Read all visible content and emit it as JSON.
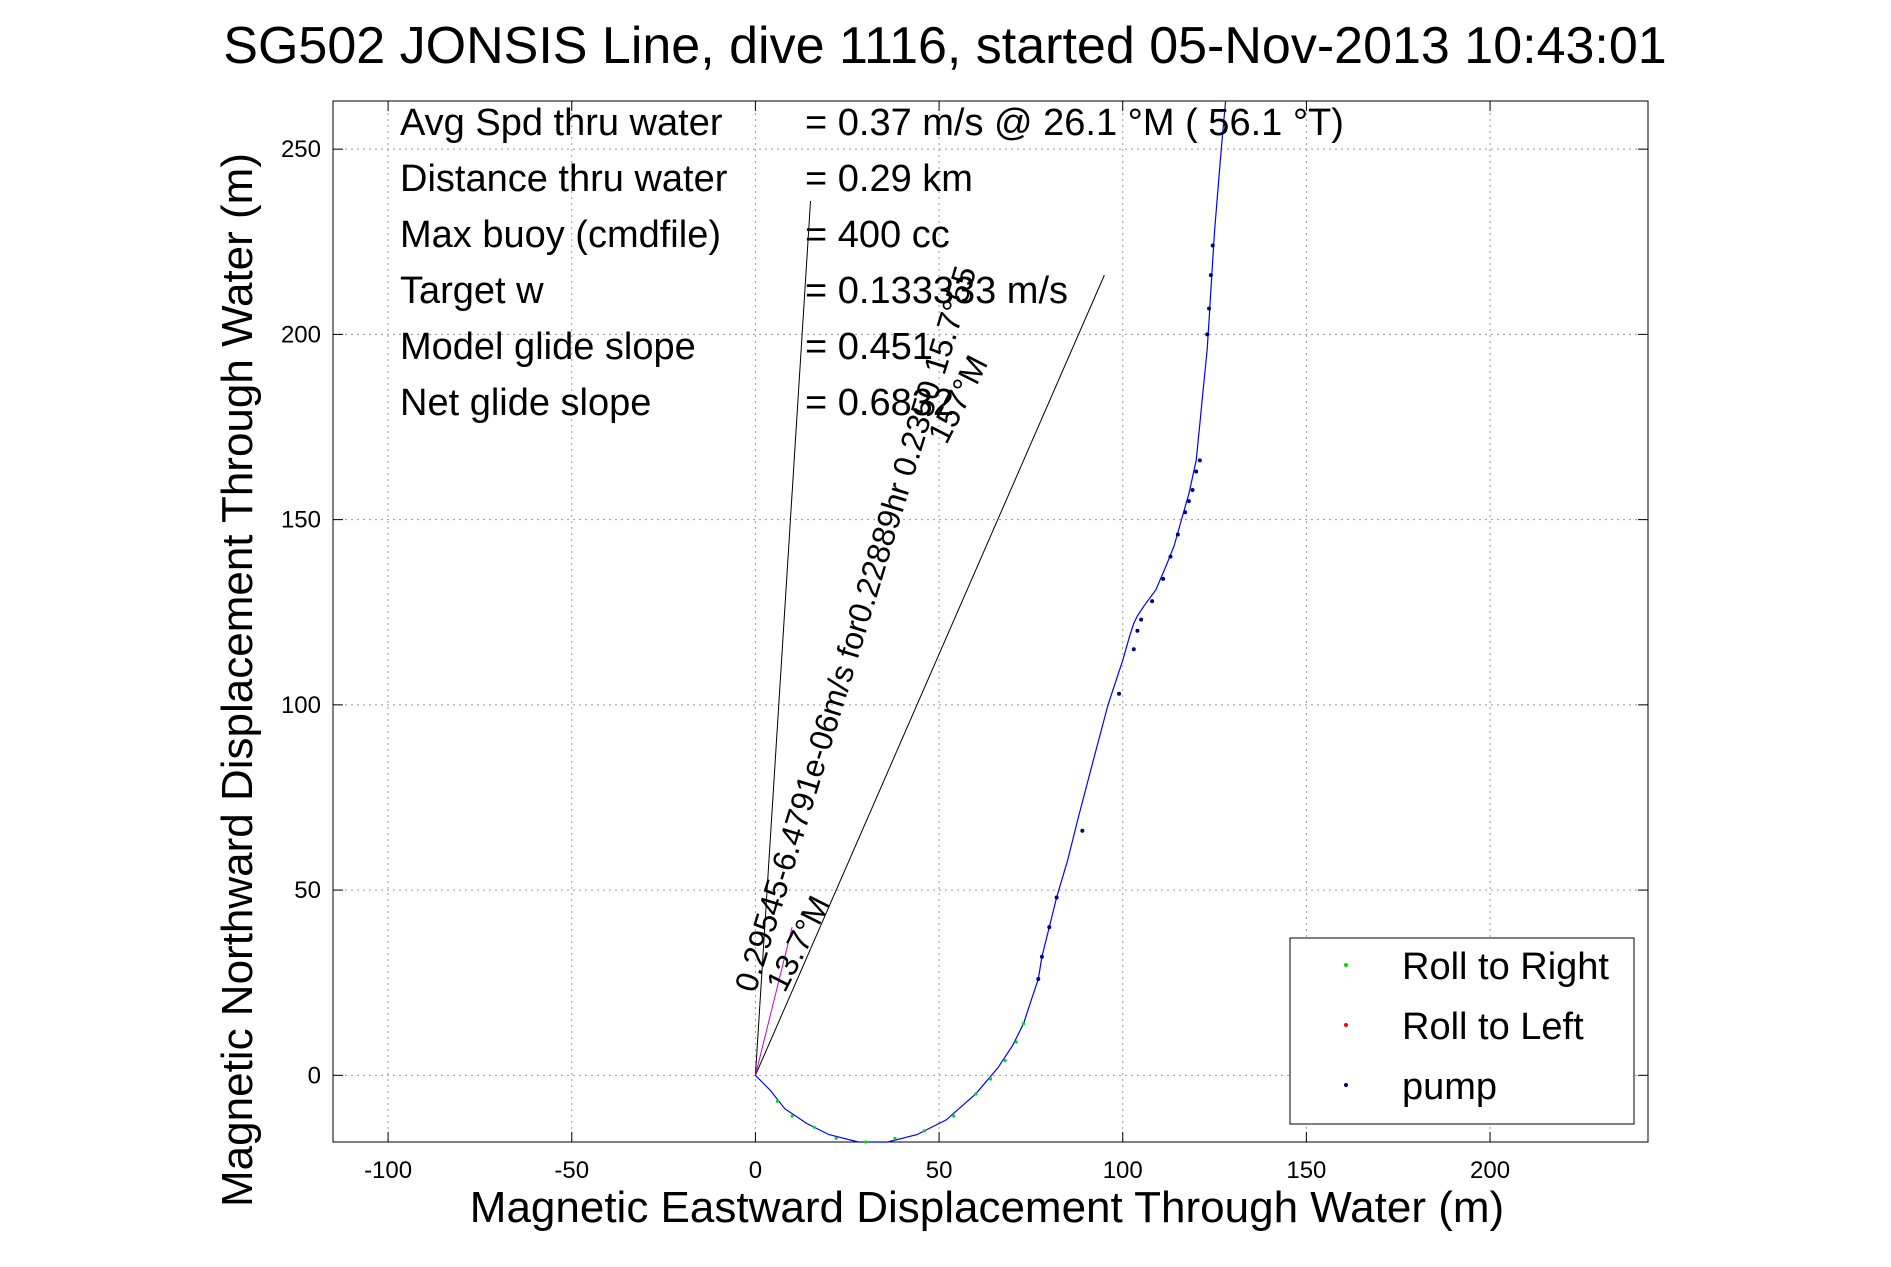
{
  "chart_data": {
    "type": "line",
    "title": "SG502 JONSIS Line, dive 1116, started 05-Nov-2013 10:43:01",
    "xlabel": "Magnetic Eastward Displacement Through Water (m)",
    "ylabel": "Magnetic Northward Displacement Through Water (m)",
    "xlim": [
      -115,
      243
    ],
    "ylim": [
      -18,
      263
    ],
    "x_ticks": [
      -100,
      -50,
      0,
      50,
      100,
      150,
      200
    ],
    "y_ticks": [
      0,
      50,
      100,
      150,
      200,
      250
    ],
    "x_tick_labels": [
      "-100",
      "-50",
      "0",
      "50",
      "100",
      "150",
      "200"
    ],
    "y_tick_labels": [
      "0",
      "50",
      "100",
      "150",
      "200",
      "250"
    ],
    "grid": true,
    "legend_position": "bottom-right",
    "colors": {
      "track": "#0000ff",
      "roll_right": "#00dd00",
      "roll_left": "#ff0000",
      "pump": "#000080",
      "vector": "#000000",
      "net_vector": "#cc00cc"
    },
    "legend": [
      {
        "label": "Roll to Right",
        "color": "#00dd00"
      },
      {
        "label": "Roll to Left",
        "color": "#ff0000"
      },
      {
        "label": "pump",
        "color": "#000080"
      }
    ],
    "stats": [
      {
        "label": "Avg Spd thru water",
        "value": "=  0.37 m/s @  26.1 °M ( 56.1 °T)"
      },
      {
        "label": "Distance thru water",
        "value": "=  0.29 km"
      },
      {
        "label": "Max buoy (cmdfile)",
        "value": "= 400 cc"
      },
      {
        "label": "Target w",
        "value": "= 0.133333 m/s"
      },
      {
        "label": "Model glide slope",
        "value": "= 0.451"
      },
      {
        "label": "Net glide slope",
        "value": "= 0.6832"
      }
    ],
    "vector_annotations": [
      {
        "text": "0.29545-6.4791e-06m/s for0.22889hr 0.2350 15.7°55",
        "x": 0,
        "y": 22,
        "rotation_deg": -73
      },
      {
        "text": "13.7°M",
        "x": 8,
        "y": 22,
        "rotation_deg": -63
      },
      {
        "text": "157°M",
        "x": 52,
        "y": 170,
        "rotation_deg": -63
      }
    ],
    "vectors": [
      {
        "name": "vector-a",
        "x": [
          0,
          15
        ],
        "y": [
          0,
          236
        ]
      },
      {
        "name": "vector-b",
        "x": [
          0,
          95
        ],
        "y": [
          0,
          216
        ]
      },
      {
        "name": "net-vector",
        "x": [
          0,
          10
        ],
        "y": [
          0,
          40
        ]
      }
    ],
    "series": [
      {
        "name": "track",
        "x": [
          0,
          4,
          8,
          14,
          20,
          28,
          36,
          44,
          52,
          60,
          66,
          70,
          73,
          75,
          77,
          78,
          80,
          82,
          85,
          88,
          92,
          96,
          100,
          102,
          103,
          104,
          106,
          109,
          112,
          114,
          116,
          118,
          120,
          121,
          122,
          123,
          123.5,
          124,
          124.5,
          125,
          126,
          127,
          128
        ],
        "y": [
          0,
          -4,
          -9,
          -13,
          -16,
          -18,
          -18,
          -16,
          -12,
          -5,
          2,
          8,
          14,
          20,
          26,
          32,
          40,
          48,
          58,
          70,
          85,
          100,
          112,
          119,
          122,
          124,
          127,
          131,
          138,
          143,
          150,
          157,
          166,
          176,
          186,
          196,
          204,
          212,
          220,
          228,
          240,
          252,
          263
        ]
      }
    ],
    "pump_points": {
      "x": [
        77,
        78,
        80,
        82,
        89,
        99,
        103,
        104,
        105,
        108,
        111,
        113,
        115,
        117,
        118,
        119,
        120,
        121,
        123,
        123.5,
        124,
        124.5
      ],
      "y": [
        26,
        32,
        40,
        48,
        66,
        103,
        115,
        120,
        123,
        128,
        134,
        140,
        146,
        152,
        155,
        158,
        163,
        166,
        200,
        207,
        216,
        224
      ]
    },
    "roll_right_points": {
      "x": [
        6,
        10,
        16,
        22,
        30,
        38,
        46,
        54,
        60,
        64,
        68,
        71,
        73
      ],
      "y": [
        -7,
        -11,
        -14,
        -17,
        -18,
        -17,
        -15,
        -11,
        -5,
        -1,
        4,
        9,
        14
      ]
    }
  }
}
